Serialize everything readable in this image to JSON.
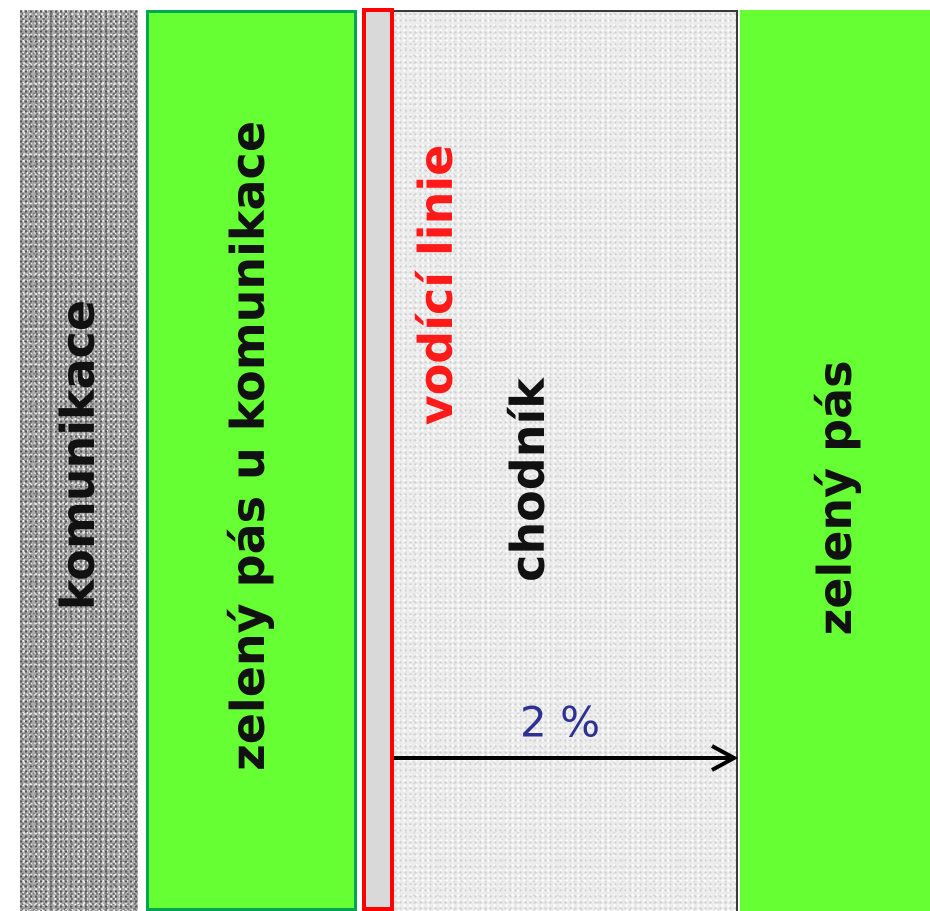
{
  "zones": {
    "road": {
      "label": "komunikace",
      "color": "#a9a9a9"
    },
    "green_road_side": {
      "label": "zelený pás u komunikace",
      "color": "#66ff33",
      "border_color": "#00a651"
    },
    "guide_line": {
      "label": "vodící linie",
      "color": "#ff0000"
    },
    "sidewalk": {
      "label": "chodník",
      "color": "#ececec"
    },
    "green_strip": {
      "label": "zelený pás",
      "color": "#66ff33"
    }
  },
  "slope": {
    "label": "2 %",
    "color": "#2e3192"
  }
}
